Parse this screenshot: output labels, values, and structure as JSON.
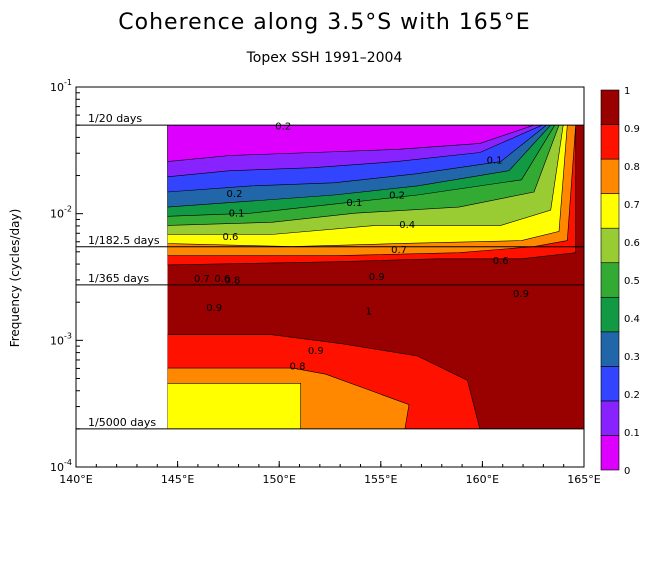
{
  "title": "Coherence along 3.5°S with 165°E",
  "subtitle": "Topex SSH 1991–2004",
  "chart_data": {
    "type": "heatmap",
    "title": "Coherence along 3.5°S with 165°E",
    "subtitle": "Topex SSH 1991–2004",
    "xlabel": "",
    "ylabel": "Frequency (cycles/day)",
    "xlim": [
      140,
      165
    ],
    "ylim": [
      0.0001,
      0.1
    ],
    "yscale": "log",
    "x_ticks": [
      "140°E",
      "145°E",
      "150°E",
      "155°E",
      "160°E",
      "165°E"
    ],
    "y_ticks": [
      {
        "base": "10",
        "exp": "-4"
      },
      {
        "base": "10",
        "exp": "-3"
      },
      {
        "base": "10",
        "exp": "-2"
      },
      {
        "base": "10",
        "exp": "-1"
      }
    ],
    "reference_lines": [
      {
        "label": "1/20 days",
        "freq": 0.05
      },
      {
        "label": "1/182.5 days",
        "freq": 0.00548
      },
      {
        "label": "1/365 days",
        "freq": 0.00274
      },
      {
        "label": "1/5000 days",
        "freq": 0.0002
      }
    ],
    "data_extent": {
      "x_min": 144.5,
      "x_max": 165,
      "freq_min": 0.0002,
      "freq_max": 0.05
    },
    "colorbar": {
      "levels": [
        0,
        0.1,
        0.2,
        0.3,
        0.4,
        0.5,
        0.6,
        0.7,
        0.8,
        0.9,
        1
      ],
      "tick_labels": [
        "0",
        "0.1",
        "0.2",
        "0.3",
        "0.4",
        "0.5",
        "0.6",
        "0.7",
        "0.8",
        "0.9",
        "1"
      ],
      "colors": [
        "#dd00ff",
        "#8822ff",
        "#3344ff",
        "#2266aa",
        "#119944",
        "#33aa33",
        "#99cc33",
        "#ffff00",
        "#ff8800",
        "#ff1100",
        "#990000"
      ]
    },
    "contour_labels": [
      {
        "text": "0.2",
        "x": 147.8,
        "freq": 0.0135
      },
      {
        "text": "0.1",
        "x": 147.9,
        "freq": 0.0095
      },
      {
        "text": "0.6",
        "x": 147.6,
        "freq": 0.0062
      },
      {
        "text": "0.2",
        "x": 150.2,
        "freq": 0.046
      },
      {
        "text": "0.1",
        "x": 153.7,
        "freq": 0.0115
      },
      {
        "text": "0.2",
        "x": 155.8,
        "freq": 0.0132
      },
      {
        "text": "0.1",
        "x": 160.6,
        "freq": 0.025
      },
      {
        "text": "0.4",
        "x": 156.3,
        "freq": 0.0077
      },
      {
        "text": "0.7",
        "x": 155.9,
        "freq": 0.0049
      },
      {
        "text": "0.6",
        "x": 160.9,
        "freq": 0.004
      },
      {
        "text": "0.9",
        "x": 154.8,
        "freq": 0.003
      },
      {
        "text": "0.7",
        "x": 146.2,
        "freq": 0.0029
      },
      {
        "text": "0.6",
        "x": 147.2,
        "freq": 0.0029
      },
      {
        "text": "0.8",
        "x": 147.7,
        "freq": 0.0028
      },
      {
        "text": "0.9",
        "x": 146.8,
        "freq": 0.0017
      },
      {
        "text": "0.9",
        "x": 161.9,
        "freq": 0.0022
      },
      {
        "text": "1",
        "x": 154.4,
        "freq": 0.0016
      },
      {
        "text": "0.9",
        "x": 151.8,
        "freq": 0.00078
      },
      {
        "text": "0.8",
        "x": 150.9,
        "freq": 0.00059
      }
    ]
  }
}
